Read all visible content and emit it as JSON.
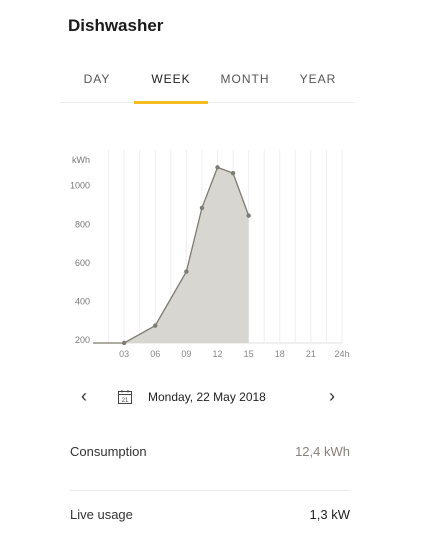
{
  "header": {
    "title": "Dishwasher"
  },
  "tabs": [
    {
      "label": "DAY",
      "active": false
    },
    {
      "label": "WEEK",
      "active": true
    },
    {
      "label": "MONTH",
      "active": false
    },
    {
      "label": "YEAR",
      "active": false
    }
  ],
  "colors": {
    "accent": "#f5bd1f",
    "area_fill": "#d8d6d1",
    "line": "#7f7a72",
    "consumption_value": "#8a7f78",
    "live_value": "#1f1f1f"
  },
  "chart_data": {
    "type": "area",
    "y_unit_label": "kWh",
    "y_ticks": [
      200,
      400,
      600,
      800,
      1000
    ],
    "ylim": [
      180,
      1180
    ],
    "x_ticks": [
      "03",
      "06",
      "09",
      "12",
      "15",
      "18",
      "21",
      "24h"
    ],
    "xlim": [
      0,
      24
    ],
    "grid": true,
    "series": [
      {
        "values": [
          {
            "x": 0,
            "y": 180
          },
          {
            "x": 3,
            "y": 180
          },
          {
            "x": 6,
            "y": 270
          },
          {
            "x": 9,
            "y": 550
          },
          {
            "x": 10.5,
            "y": 880
          },
          {
            "x": 12,
            "y": 1090
          },
          {
            "x": 13.5,
            "y": 1060
          },
          {
            "x": 15,
            "y": 840
          }
        ]
      }
    ]
  },
  "date_nav": {
    "prev_icon": "chevron-left",
    "next_icon": "chevron-right",
    "calendar_icon": "calendar",
    "calendar_day": "21",
    "date_label": "Monday, 22 May 2018"
  },
  "stats": {
    "consumption": {
      "label": "Consumption",
      "value": "12,4 kWh"
    },
    "live_usage": {
      "label": "Live usage",
      "value": "1,3 kW"
    }
  }
}
